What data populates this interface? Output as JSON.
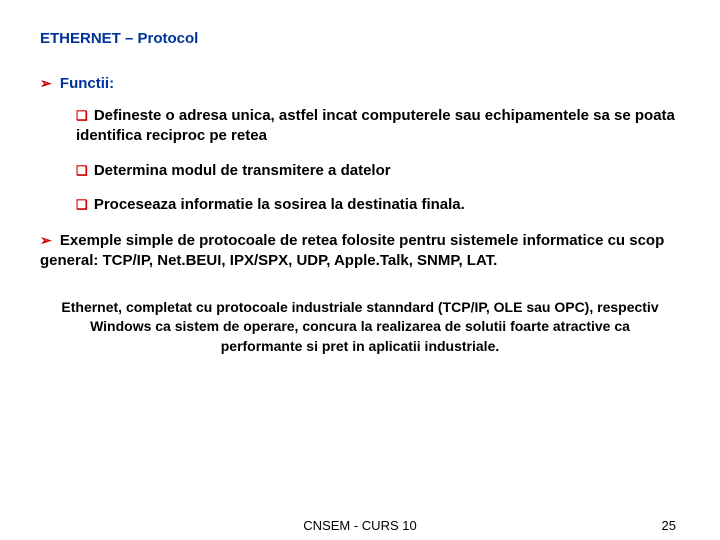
{
  "title": "ETHERNET – Protocol",
  "section1": {
    "heading": "Functii:",
    "items": [
      "Defineste o adresa unica, astfel incat computerele sau echipamentele sa se poata identifica reciproc pe retea",
      "Determina modul de transmitere a datelor",
      "Proceseaza informatie la sosirea la destinatia finala."
    ]
  },
  "section2": {
    "text": "Exemple simple de protocoale de retea folosite pentru sistemele informatice cu scop general: TCP/IP, Net.BEUI, IPX/SPX, UDP, Apple.Talk, SNMP, LAT."
  },
  "centered": "Ethernet, completat cu protocoale industriale stanndard (TCP/IP, OLE sau OPC), respectiv Windows ca sistem de operare, concura la realizarea de solutii foarte atractive ca performante si pret in aplicatii industriale.",
  "footer": {
    "center": "CNSEM - CURS 10",
    "page": "25"
  },
  "colors": {
    "heading": "#003399",
    "bullet": "#cc0000",
    "text": "#000000",
    "background": "#ffffff"
  }
}
